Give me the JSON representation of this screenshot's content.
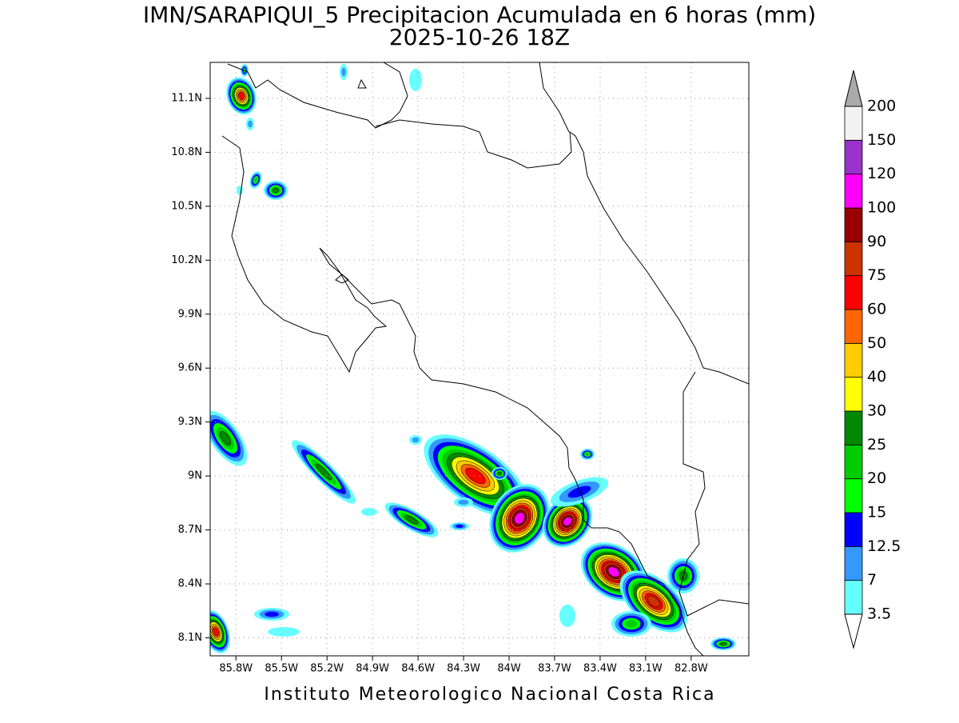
{
  "chart_data": {
    "type": "map",
    "title": "IMN/SARAPIQUI_5 Precipitacion Acumulada en 6 horas (mm)",
    "subtitle": "2025-10-26 18Z",
    "footer": "Instituto Meteorologico Nacional Costa Rica",
    "xlim": [
      -85.97,
      -82.42
    ],
    "ylim": [
      8.0,
      11.3
    ],
    "xticks": [
      {
        "value": -85.8,
        "label": "85.8W"
      },
      {
        "value": -85.5,
        "label": "85.5W"
      },
      {
        "value": -85.2,
        "label": "85.2W"
      },
      {
        "value": -84.9,
        "label": "84.9W"
      },
      {
        "value": -84.6,
        "label": "84.6W"
      },
      {
        "value": -84.3,
        "label": "84.3W"
      },
      {
        "value": -84.0,
        "label": "84W"
      },
      {
        "value": -83.7,
        "label": "83.7W"
      },
      {
        "value": -83.4,
        "label": "83.4W"
      },
      {
        "value": -83.1,
        "label": "83.1W"
      },
      {
        "value": -82.8,
        "label": "82.8W"
      }
    ],
    "yticks": [
      {
        "value": 8.1,
        "label": "8.1N"
      },
      {
        "value": 8.4,
        "label": "8.4N"
      },
      {
        "value": 8.7,
        "label": "8.7N"
      },
      {
        "value": 9.0,
        "label": "9N"
      },
      {
        "value": 9.3,
        "label": "9.3N"
      },
      {
        "value": 9.6,
        "label": "9.6N"
      },
      {
        "value": 9.9,
        "label": "9.9N"
      },
      {
        "value": 10.2,
        "label": "10.2N"
      },
      {
        "value": 10.5,
        "label": "10.5N"
      },
      {
        "value": 10.8,
        "label": "10.8N"
      },
      {
        "value": 11.1,
        "label": "11.1N"
      }
    ],
    "grid": true,
    "colorbar": {
      "levels": [
        3.5,
        7,
        12.5,
        15,
        20,
        25,
        30,
        40,
        50,
        60,
        75,
        90,
        100,
        120,
        150,
        200
      ],
      "colors": [
        "#66ffff",
        "#3399ff",
        "#0000ff",
        "#00ff00",
        "#00cc00",
        "#008800",
        "#ffff00",
        "#ffcc00",
        "#ff6600",
        "#ff0000",
        "#cc3300",
        "#990000",
        "#ff00ff",
        "#9933cc",
        "#f2f2f2"
      ],
      "over_color": "#aaaaaa",
      "under_color": "#ffffff"
    }
  }
}
